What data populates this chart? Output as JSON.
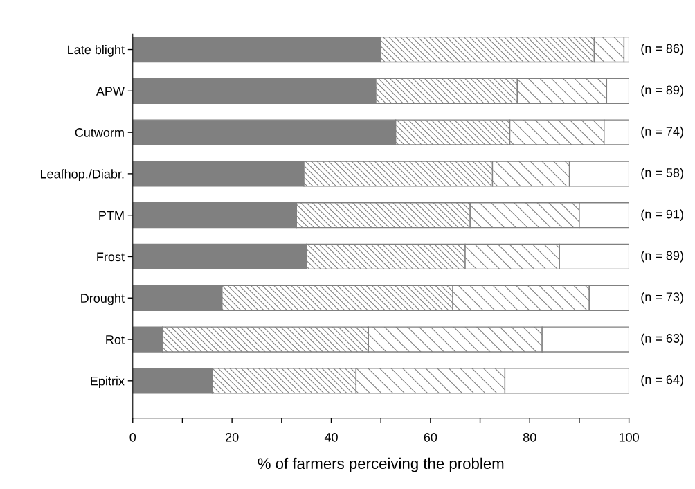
{
  "chart_data": {
    "type": "bar",
    "orientation": "horizontal",
    "stacked": true,
    "xlabel": "% of farmers perceiving the problem",
    "categories": [
      "Late blight",
      "APW",
      "Cutworm",
      "Leafhop./Diabr.",
      "PTM",
      "Frost",
      "Drought",
      "Rot",
      "Epitrix"
    ],
    "series": [
      {
        "color": "#808080",
        "values": [
          50,
          49,
          53,
          34.5,
          33,
          35,
          18,
          6,
          16
        ]
      },
      {
        "color": "#808080",
        "values": [
          43,
          28.5,
          23,
          38,
          35,
          32,
          46.5,
          41.5,
          29
        ]
      },
      {
        "color": "#808080",
        "values": [
          6,
          18,
          19,
          15.5,
          22,
          19,
          27.5,
          35,
          30
        ]
      },
      {
        "color": "#ffffff",
        "values": [
          1,
          4.5,
          5,
          12,
          10,
          14,
          8,
          17.5,
          25
        ]
      }
    ],
    "xlim": [
      0,
      100
    ],
    "xticks": [
      0,
      {
        "value": 10,
        "label": null
      },
      20,
      {
        "value": 30,
        "label": null
      },
      40,
      {
        "value": 50,
        "label": null
      },
      60,
      {
        "value": 70,
        "label": null
      },
      80,
      {
        "value": 90,
        "label": null
      },
      100
    ],
    "annotations": [
      "(n = 86)",
      "(n = 89)",
      "(n = 74)",
      "(n = 58)",
      "(n = 91)",
      "(n = 89)",
      "(n = 73)",
      "(n = 63)",
      "(n = 64)"
    ],
    "grid": false,
    "legend": false
  }
}
